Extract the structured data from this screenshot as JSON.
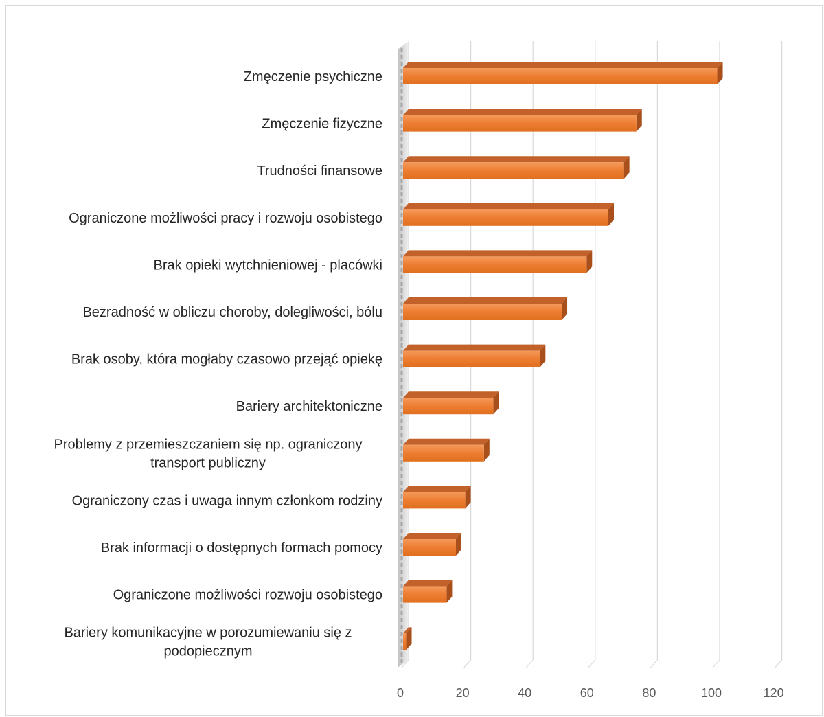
{
  "chart_data": {
    "type": "bar",
    "orientation": "horizontal",
    "style": "3d",
    "title": "",
    "xlabel": "",
    "ylabel": "",
    "categories": [
      "Zmęczenie psychiczne",
      "Zmęczenie fizyczne",
      "Trudności finansowe",
      "Ograniczone możliwości pracy i rozwoju osobistego",
      "Brak opieki wytchnieniowej - placówki",
      "Bezradność w obliczu choroby, dolegliwości, bólu",
      "Brak osoby, która mogłaby czasowo przejąć opiekę",
      "Bariery architektoniczne",
      "Problemy z przemieszczaniem się np. ograniczony transport publiczny",
      "Ograniczony czas i uwaga  innym członkom rodziny",
      "Brak informacji o dostępnych formach pomocy",
      "Ograniczone możliwości rozwoju osobistego",
      "Bariery komunikacyjne w porozumiewaniu się z podopiecznym"
    ],
    "category_lines": [
      [
        "Zmęczenie psychiczne"
      ],
      [
        "Zmęczenie fizyczne"
      ],
      [
        "Trudności finansowe"
      ],
      [
        "Ograniczone możliwości pracy i rozwoju osobistego"
      ],
      [
        "Brak opieki wytchnieniowej - placówki"
      ],
      [
        "Bezradność w obliczu choroby, dolegliwości, bólu"
      ],
      [
        "Brak osoby, która mogłaby czasowo przejąć opiekę"
      ],
      [
        "Bariery architektoniczne"
      ],
      [
        "Problemy z przemieszczaniem się np. ograniczony",
        "transport publiczny"
      ],
      [
        "Ograniczony czas i uwaga  innym członkom rodziny"
      ],
      [
        "Brak informacji o dostępnych formach pomocy"
      ],
      [
        "Ograniczone możliwości rozwoju osobistego"
      ],
      [
        "Bariery komunikacyjne w porozumiewaniu się z",
        "podopiecznym"
      ]
    ],
    "values": [
      101,
      75,
      71,
      66,
      59,
      51,
      44,
      29,
      26,
      20,
      17,
      14,
      1
    ],
    "xlim": [
      0,
      120
    ],
    "ticks": [
      "0",
      "20",
      "40",
      "60",
      "80",
      "100",
      "120"
    ],
    "grid": true,
    "legend": "none",
    "bar_color": "#ed7d31"
  }
}
